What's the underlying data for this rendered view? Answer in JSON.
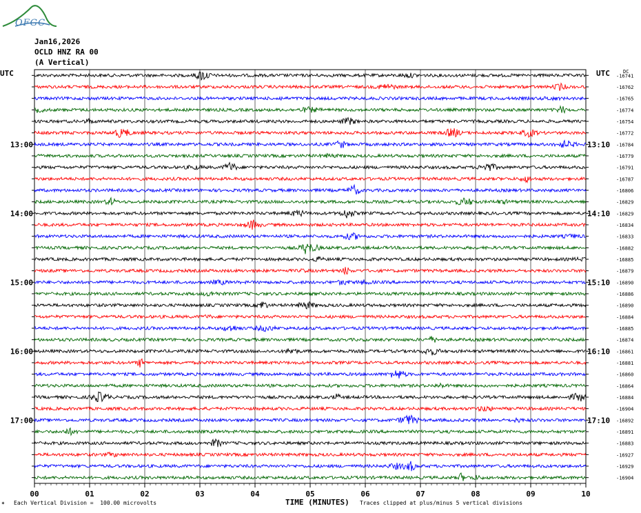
{
  "header": {
    "logo_text": "OFGC",
    "date": "Jan16,2026",
    "station": "OCLD HNZ RA 00",
    "component": "(A Vertical)"
  },
  "utc_left": "UTC",
  "utc_right": "UTC",
  "dc_label": "DC",
  "footer": {
    "note_left": "Each Vertical Division =  100.00 microvolts",
    "note_right": "Traces clipped at plus/minus 5 vertical divisions",
    "xlabel": "TIME (MINUTES)"
  },
  "colors": {
    "trace_cycle": [
      "#000000",
      "#ff0000",
      "#0000ff",
      "#006600"
    ],
    "grid": "#000000"
  },
  "chart_data": {
    "type": "line",
    "subtype": "helicorder",
    "xlabel": "TIME (MINUTES)",
    "xlim": [
      0,
      10
    ],
    "x_ticks": [
      "00",
      "01",
      "02",
      "03",
      "04",
      "05",
      "06",
      "07",
      "08",
      "09",
      "10"
    ],
    "left_time_labels": [
      {
        "row": 6,
        "label": "13:00"
      },
      {
        "row": 12,
        "label": "14:00"
      },
      {
        "row": 18,
        "label": "15:00"
      },
      {
        "row": 24,
        "label": "16:00"
      },
      {
        "row": 30,
        "label": "17:00"
      }
    ],
    "right_time_labels": [
      {
        "row": 6,
        "label": "13:10"
      },
      {
        "row": 12,
        "label": "14:10"
      },
      {
        "row": 18,
        "label": "15:10"
      },
      {
        "row": 24,
        "label": "16:10"
      },
      {
        "row": 30,
        "label": "17:10"
      }
    ],
    "dc_offsets": [
      "-16741",
      "-16762",
      "-16765",
      "-16774",
      "-16754",
      "-16772",
      "-16784",
      "-16779",
      "-16791",
      "-16787",
      "-16806",
      "-16829",
      "-16829",
      "-16834",
      "-16833",
      "-16882",
      "-16885",
      "-16879",
      "-16890",
      "-16886",
      "-16890",
      "-16884",
      "-16885",
      "-16874",
      "-16861",
      "-16881",
      "-16860",
      "-16864",
      "-16884",
      "-16904",
      "-16892",
      "-16891",
      "-16883",
      "-16927",
      "-16929",
      "-16904"
    ],
    "trace_count": 36,
    "minutes_per_row": 10
  }
}
